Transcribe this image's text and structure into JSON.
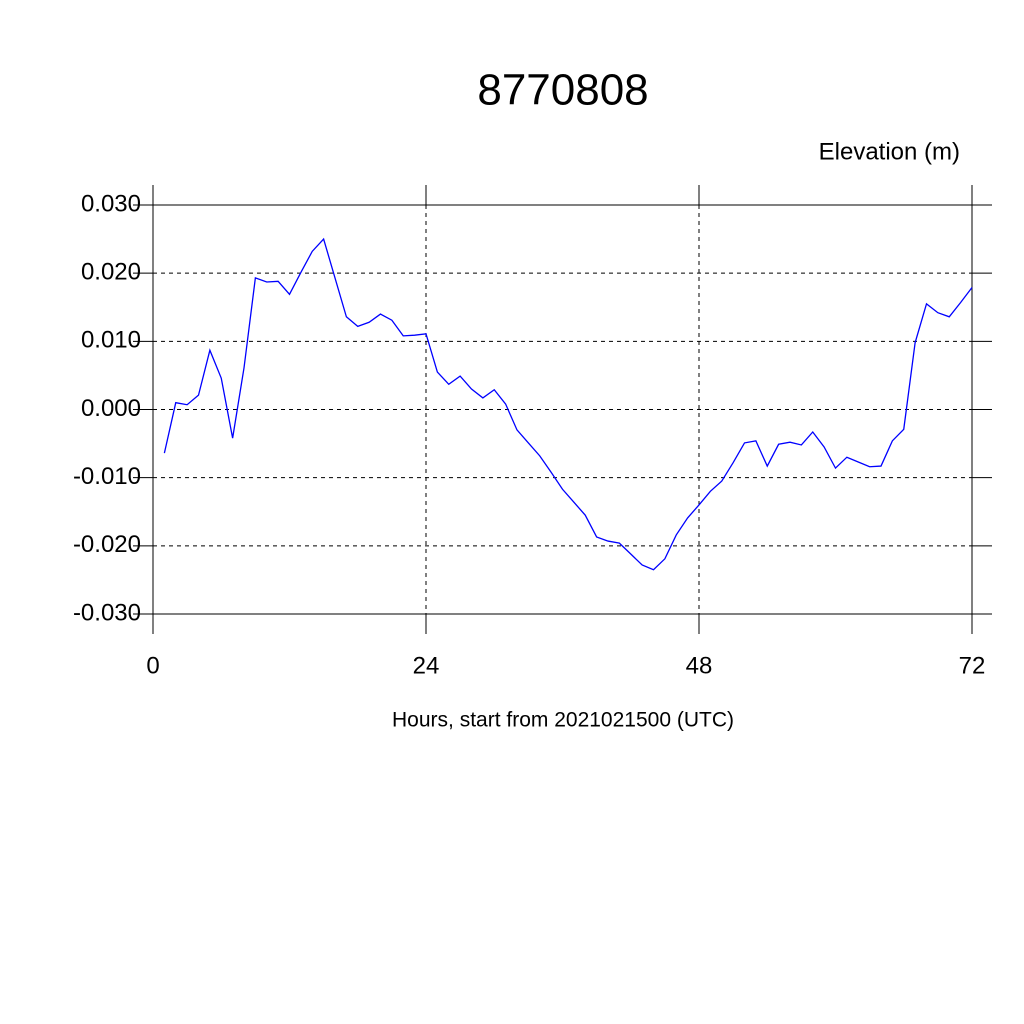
{
  "chart_data": {
    "type": "line",
    "title": "8770808",
    "subtitle": "Elevation (m)",
    "x_label": "Hours, start from 2021021500 (UTC)",
    "x": [
      1,
      2,
      3,
      4,
      5,
      6,
      7,
      8,
      9,
      10,
      11,
      12,
      13,
      14,
      15,
      16,
      17,
      18,
      19,
      20,
      21,
      22,
      23,
      24,
      25,
      26,
      27,
      28,
      29,
      30,
      31,
      32,
      33,
      34,
      35,
      36,
      37,
      38,
      39,
      40,
      41,
      42,
      43,
      44,
      45,
      46,
      47,
      48,
      49,
      50,
      51,
      52,
      53,
      54,
      55,
      56,
      57,
      58,
      59,
      60,
      61,
      62,
      63,
      64,
      65,
      66,
      67,
      68,
      69,
      70,
      71,
      72
    ],
    "series": [
      {
        "color": "#0000ff",
        "values": [
          -0.0064,
          0.001,
          0.0007,
          0.0021,
          0.0087,
          0.0046,
          -0.0042,
          0.0061,
          0.0193,
          0.0187,
          0.0188,
          0.0169,
          0.0201,
          0.0232,
          0.025,
          0.0193,
          0.0136,
          0.0122,
          0.0128,
          0.014,
          0.0131,
          0.0108,
          0.0109,
          0.0111,
          0.0055,
          0.0037,
          0.0049,
          0.003,
          0.0017,
          0.0029,
          0.0008,
          -0.003,
          -0.0049,
          -0.0068,
          -0.0092,
          -0.0117,
          -0.0136,
          -0.0155,
          -0.0187,
          -0.0193,
          -0.0196,
          -0.0212,
          -0.0228,
          -0.0235,
          -0.0219,
          -0.0184,
          -0.0159,
          -0.014,
          -0.012,
          -0.0105,
          -0.0078,
          -0.0049,
          -0.0046,
          -0.0083,
          -0.0051,
          -0.0048,
          -0.0052,
          -0.0033,
          -0.0055,
          -0.0086,
          -0.007,
          -0.0077,
          -0.0084,
          -0.0083,
          -0.0046,
          -0.0029,
          0.0098,
          0.0155,
          0.0142,
          0.0136,
          0.0157,
          0.0179
        ]
      }
    ],
    "xlim": [
      0,
      72
    ],
    "xticks": [
      0,
      24,
      48,
      72
    ],
    "ylim": [
      -0.03,
      0.03
    ],
    "yticks": [
      {
        "value": -0.03,
        "label": "-0.030"
      },
      {
        "value": -0.02,
        "label": "-0.020"
      },
      {
        "value": -0.01,
        "label": "-0.010"
      },
      {
        "value": 0,
        "label": "0.000"
      },
      {
        "value": 0.01,
        "label": "0.010"
      },
      {
        "value": 0.02,
        "label": "0.020"
      },
      {
        "value": 0.03,
        "label": "0.030"
      }
    ],
    "grid": true
  }
}
